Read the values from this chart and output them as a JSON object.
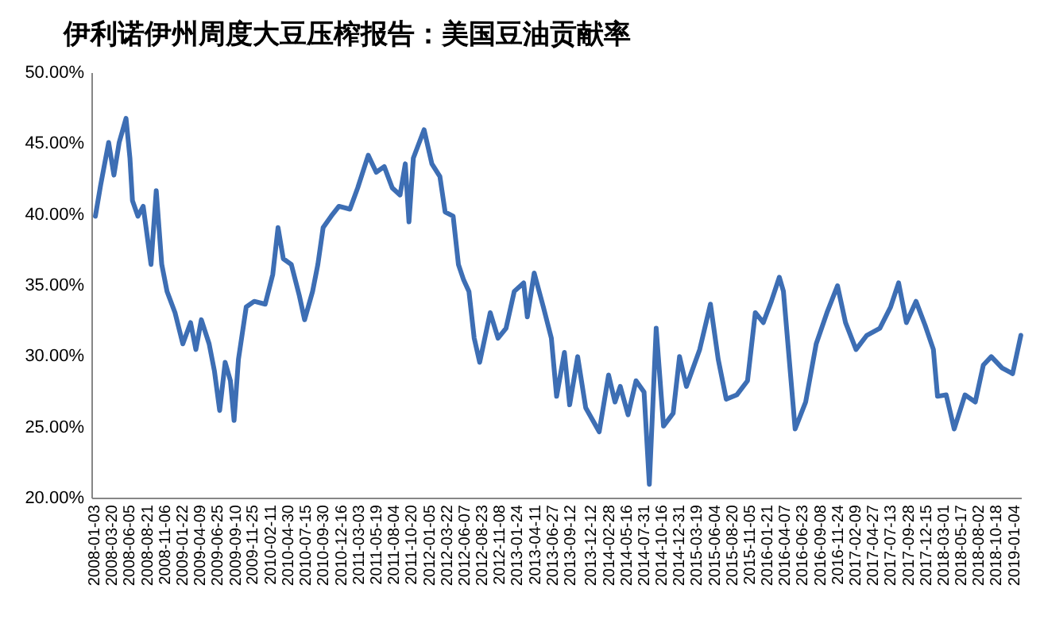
{
  "chart_data": {
    "type": "line",
    "title": "伊利诺伊州周度大豆压榨报告：美国豆油贡献率",
    "x": [
      "2008-01-03",
      "2008-01-26",
      "2008-03-01",
      "2008-03-24",
      "2008-04-16",
      "2008-05-16",
      "2008-06-02",
      "2008-06-13",
      "2008-07-07",
      "2008-07-30",
      "2008-09-02",
      "2008-09-25",
      "2008-10-19",
      "2008-11-11",
      "2008-12-16",
      "2009-01-19",
      "2009-02-22",
      "2009-03-17",
      "2009-04-10",
      "2009-05-14",
      "2009-06-06",
      "2009-06-29",
      "2009-07-23",
      "2009-08-15",
      "2009-08-31",
      "2009-09-19",
      "2009-10-23",
      "2009-11-27",
      "2010-01-14",
      "2010-02-16",
      "2010-03-11",
      "2010-04-03",
      "2010-05-08",
      "2010-06-12",
      "2010-07-05",
      "2010-08-09",
      "2010-09-01",
      "2010-09-24",
      "2010-10-29",
      "2010-12-02",
      "2011-01-19",
      "2011-02-22",
      "2011-04-09",
      "2011-05-14",
      "2011-06-18",
      "2011-07-23",
      "2011-08-26",
      "2011-09-18",
      "2011-10-04",
      "2011-10-23",
      "2011-12-09",
      "2012-01-12",
      "2012-02-16",
      "2012-03-10",
      "2012-04-14",
      "2012-05-07",
      "2012-05-30",
      "2012-06-22",
      "2012-07-15",
      "2012-08-08",
      "2012-09-23",
      "2012-10-27",
      "2012-12-01",
      "2013-01-06",
      "2013-02-16",
      "2013-03-04",
      "2013-04-03",
      "2013-05-13",
      "2013-06-17",
      "2013-07-10",
      "2013-08-13",
      "2013-09-05",
      "2013-10-10",
      "2013-11-14",
      "2014-01-12",
      "2014-02-22",
      "2014-03-22",
      "2014-04-14",
      "2014-05-18",
      "2014-06-22",
      "2014-07-27",
      "2014-08-19",
      "2014-09-18",
      "2014-10-20",
      "2014-12-01",
      "2014-12-29",
      "2015-01-28",
      "2015-03-27",
      "2015-05-13",
      "2015-06-16",
      "2015-07-21",
      "2015-09-05",
      "2015-10-22",
      "2015-11-25",
      "2015-12-30",
      "2016-02-03",
      "2016-03-09",
      "2016-03-27",
      "2016-05-17",
      "2016-07-02",
      "2016-08-17",
      "2016-10-03",
      "2016-11-18",
      "2016-12-23",
      "2017-02-07",
      "2017-03-26",
      "2017-05-22",
      "2017-07-08",
      "2017-08-12",
      "2017-09-15",
      "2017-10-27",
      "2017-12-06",
      "2018-01-11",
      "2018-01-29",
      "2018-03-08",
      "2018-04-12",
      "2018-05-29",
      "2018-07-13",
      "2018-08-17",
      "2018-09-21",
      "2018-11-07",
      "2018-12-23",
      "2019-01-28"
    ],
    "values": [
      39.9,
      42.1,
      45.1,
      42.8,
      45.1,
      46.8,
      44.0,
      41.0,
      39.9,
      40.6,
      36.5,
      41.7,
      36.5,
      34.6,
      33.1,
      30.9,
      32.4,
      30.5,
      32.6,
      30.9,
      29.0,
      26.2,
      29.6,
      28.3,
      25.5,
      29.8,
      33.5,
      33.9,
      33.7,
      35.8,
      39.1,
      36.9,
      36.5,
      34.3,
      32.6,
      34.6,
      36.5,
      39.1,
      39.9,
      40.6,
      40.4,
      41.9,
      44.2,
      43.0,
      43.4,
      41.9,
      41.4,
      43.6,
      39.5,
      44.0,
      46.0,
      43.6,
      42.7,
      40.2,
      39.9,
      36.5,
      35.4,
      34.6,
      31.3,
      29.6,
      33.1,
      31.3,
      32.0,
      34.6,
      35.2,
      32.8,
      35.9,
      33.5,
      31.3,
      27.2,
      30.3,
      26.6,
      30.0,
      26.4,
      24.7,
      28.7,
      26.8,
      27.9,
      25.9,
      28.3,
      27.5,
      21.0,
      32.0,
      25.1,
      26.0,
      30.0,
      27.9,
      30.5,
      33.7,
      29.8,
      27.0,
      27.3,
      28.3,
      33.1,
      32.4,
      33.9,
      35.6,
      34.6,
      24.9,
      26.8,
      30.9,
      33.1,
      35.0,
      32.4,
      30.5,
      31.5,
      32.0,
      33.5,
      35.2,
      32.4,
      33.9,
      32.2,
      30.5,
      27.2,
      27.3,
      24.9,
      27.3,
      26.8,
      29.4,
      30.0,
      29.2,
      28.8,
      31.5
    ],
    "color": "#3d6eb4",
    "xlim": [
      "2007-12-20",
      "2019-02-01"
    ],
    "xticks": [
      "2008-01-03",
      "2008-03-20",
      "2008-06-05",
      "2008-08-21",
      "2008-11-06",
      "2009-01-22",
      "2009-04-09",
      "2009-06-25",
      "2009-09-10",
      "2009-11-25",
      "2010-02-11",
      "2010-04-30",
      "2010-07-15",
      "2010-09-30",
      "2010-12-16",
      "2011-03-03",
      "2011-05-19",
      "2011-08-04",
      "2011-10-20",
      "2012-01-05",
      "2012-03-22",
      "2012-06-07",
      "2012-08-23",
      "2012-11-08",
      "2013-01-24",
      "2013-04-11",
      "2013-06-27",
      "2013-09-12",
      "2013-12-12",
      "2014-02-28",
      "2014-05-16",
      "2014-07-31",
      "2014-10-16",
      "2014-12-31",
      "2015-03-19",
      "2015-06-04",
      "2015-08-20",
      "2015-11-05",
      "2016-01-21",
      "2016-04-07",
      "2016-06-23",
      "2016-09-08",
      "2016-11-24",
      "2017-02-09",
      "2017-04-27",
      "2017-07-13",
      "2017-09-28",
      "2017-12-15",
      "2018-03-01",
      "2018-05-17",
      "2018-08-02",
      "2018-10-18",
      "2019-01-04"
    ],
    "ylim": [
      20,
      50
    ],
    "yticks": [
      {
        "value": 20,
        "label": "20.00%"
      },
      {
        "value": 25,
        "label": "25.00%"
      },
      {
        "value": 30,
        "label": "30.00%"
      },
      {
        "value": 35,
        "label": "35.00%"
      },
      {
        "value": 40,
        "label": "40.00%"
      },
      {
        "value": 45,
        "label": "45.00%"
      },
      {
        "value": 50,
        "label": "50.00%"
      }
    ]
  }
}
